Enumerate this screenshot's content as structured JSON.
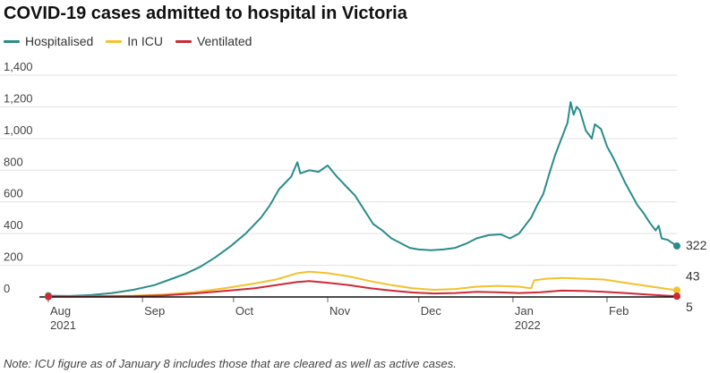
{
  "colors": {
    "hospitalised": "#2a8c8a",
    "icu": "#f2c12e",
    "ventilated": "#cc2a36",
    "grid": "#e2e2e2",
    "axis": "#111111"
  },
  "chart_data": {
    "type": "line",
    "title": "COVID-19 cases admitted to hospital in Victoria",
    "note": "Note: ICU figure as of January 8 includes those that are cleared as well as active cases.",
    "xlabel": "",
    "ylabel": "",
    "ylim": [
      0,
      1400
    ],
    "y_ticks": [
      0,
      200,
      400,
      600,
      800,
      1000,
      1200,
      1400
    ],
    "y_tick_labels": [
      "0",
      "200",
      "400",
      "600",
      "800",
      "1,000",
      "1,200",
      "1,400"
    ],
    "x_ticks": [
      {
        "date": "2021-08-01",
        "label": "Aug",
        "year": "2021"
      },
      {
        "date": "2021-09-01",
        "label": "Sep",
        "year": ""
      },
      {
        "date": "2021-10-01",
        "label": "Oct",
        "year": ""
      },
      {
        "date": "2021-11-01",
        "label": "Nov",
        "year": ""
      },
      {
        "date": "2021-12-01",
        "label": "Dec",
        "year": ""
      },
      {
        "date": "2022-01-01",
        "label": "Jan",
        "year": "2022"
      },
      {
        "date": "2022-02-01",
        "label": "Feb",
        "year": ""
      }
    ],
    "xlim": [
      "2021-08-01",
      "2022-02-24"
    ],
    "grid": true,
    "legend_position": "top-left",
    "series": [
      {
        "name": "Hospitalised",
        "color_key": "hospitalised",
        "end_label": "322",
        "points": [
          [
            "2021-08-01",
            8
          ],
          [
            "2021-08-08",
            6
          ],
          [
            "2021-08-15",
            12
          ],
          [
            "2021-08-22",
            25
          ],
          [
            "2021-08-29",
            45
          ],
          [
            "2021-09-05",
            75
          ],
          [
            "2021-09-10",
            110
          ],
          [
            "2021-09-15",
            145
          ],
          [
            "2021-09-20",
            190
          ],
          [
            "2021-09-25",
            250
          ],
          [
            "2021-09-30",
            320
          ],
          [
            "2021-10-05",
            400
          ],
          [
            "2021-10-10",
            500
          ],
          [
            "2021-10-13",
            580
          ],
          [
            "2021-10-16",
            680
          ],
          [
            "2021-10-18",
            720
          ],
          [
            "2021-10-20",
            760
          ],
          [
            "2021-10-22",
            850
          ],
          [
            "2021-10-23",
            780
          ],
          [
            "2021-10-26",
            800
          ],
          [
            "2021-10-29",
            790
          ],
          [
            "2021-11-01",
            830
          ],
          [
            "2021-11-04",
            760
          ],
          [
            "2021-11-07",
            700
          ],
          [
            "2021-11-10",
            640
          ],
          [
            "2021-11-13",
            550
          ],
          [
            "2021-11-16",
            460
          ],
          [
            "2021-11-19",
            420
          ],
          [
            "2021-11-22",
            370
          ],
          [
            "2021-11-25",
            340
          ],
          [
            "2021-11-28",
            310
          ],
          [
            "2021-12-01",
            300
          ],
          [
            "2021-12-05",
            295
          ],
          [
            "2021-12-09",
            300
          ],
          [
            "2021-12-13",
            310
          ],
          [
            "2021-12-17",
            340
          ],
          [
            "2021-12-20",
            370
          ],
          [
            "2021-12-24",
            390
          ],
          [
            "2021-12-28",
            395
          ],
          [
            "2021-12-31",
            370
          ],
          [
            "2022-01-03",
            400
          ],
          [
            "2022-01-05",
            450
          ],
          [
            "2022-01-07",
            500
          ],
          [
            "2022-01-09",
            580
          ],
          [
            "2022-01-11",
            650
          ],
          [
            "2022-01-13",
            780
          ],
          [
            "2022-01-15",
            900
          ],
          [
            "2022-01-17",
            1000
          ],
          [
            "2022-01-18",
            1050
          ],
          [
            "2022-01-19",
            1100
          ],
          [
            "2022-01-20",
            1230
          ],
          [
            "2022-01-21",
            1150
          ],
          [
            "2022-01-22",
            1200
          ],
          [
            "2022-01-23",
            1180
          ],
          [
            "2022-01-25",
            1050
          ],
          [
            "2022-01-27",
            1000
          ],
          [
            "2022-01-28",
            1090
          ],
          [
            "2022-01-30",
            1060
          ],
          [
            "2022-02-01",
            950
          ],
          [
            "2022-02-03",
            880
          ],
          [
            "2022-02-05",
            800
          ],
          [
            "2022-02-07",
            720
          ],
          [
            "2022-02-09",
            650
          ],
          [
            "2022-02-11",
            580
          ],
          [
            "2022-02-13",
            530
          ],
          [
            "2022-02-15",
            470
          ],
          [
            "2022-02-17",
            420
          ],
          [
            "2022-02-18",
            450
          ],
          [
            "2022-02-19",
            370
          ],
          [
            "2022-02-21",
            360
          ],
          [
            "2022-02-24",
            322
          ]
        ]
      },
      {
        "name": "In ICU",
        "color_key": "icu",
        "end_label": "43",
        "points": [
          [
            "2021-08-01",
            3
          ],
          [
            "2021-08-15",
            4
          ],
          [
            "2021-08-29",
            8
          ],
          [
            "2021-09-08",
            15
          ],
          [
            "2021-09-18",
            30
          ],
          [
            "2021-09-28",
            55
          ],
          [
            "2021-10-08",
            85
          ],
          [
            "2021-10-15",
            110
          ],
          [
            "2021-10-22",
            150
          ],
          [
            "2021-10-26",
            160
          ],
          [
            "2021-11-01",
            150
          ],
          [
            "2021-11-08",
            130
          ],
          [
            "2021-11-15",
            100
          ],
          [
            "2021-11-22",
            75
          ],
          [
            "2021-11-29",
            55
          ],
          [
            "2021-12-06",
            45
          ],
          [
            "2021-12-13",
            50
          ],
          [
            "2021-12-20",
            65
          ],
          [
            "2021-12-27",
            70
          ],
          [
            "2022-01-03",
            65
          ],
          [
            "2022-01-07",
            55
          ],
          [
            "2022-01-08",
            105
          ],
          [
            "2022-01-12",
            115
          ],
          [
            "2022-01-17",
            120
          ],
          [
            "2022-01-24",
            115
          ],
          [
            "2022-01-31",
            110
          ],
          [
            "2022-02-07",
            90
          ],
          [
            "2022-02-14",
            70
          ],
          [
            "2022-02-21",
            50
          ],
          [
            "2022-02-24",
            43
          ]
        ]
      },
      {
        "name": "Ventilated",
        "color_key": "ventilated",
        "end_label": "5",
        "points": [
          [
            "2021-08-01",
            2
          ],
          [
            "2021-08-15",
            3
          ],
          [
            "2021-08-29",
            5
          ],
          [
            "2021-09-08",
            10
          ],
          [
            "2021-09-18",
            22
          ],
          [
            "2021-09-28",
            38
          ],
          [
            "2021-10-08",
            55
          ],
          [
            "2021-10-15",
            75
          ],
          [
            "2021-10-22",
            95
          ],
          [
            "2021-10-26",
            100
          ],
          [
            "2021-11-01",
            90
          ],
          [
            "2021-11-08",
            75
          ],
          [
            "2021-11-15",
            55
          ],
          [
            "2021-11-22",
            40
          ],
          [
            "2021-11-29",
            28
          ],
          [
            "2021-12-06",
            22
          ],
          [
            "2021-12-13",
            25
          ],
          [
            "2021-12-20",
            32
          ],
          [
            "2021-12-27",
            30
          ],
          [
            "2022-01-03",
            25
          ],
          [
            "2022-01-10",
            30
          ],
          [
            "2022-01-17",
            40
          ],
          [
            "2022-01-24",
            38
          ],
          [
            "2022-01-31",
            32
          ],
          [
            "2022-02-07",
            25
          ],
          [
            "2022-02-14",
            15
          ],
          [
            "2022-02-21",
            8
          ],
          [
            "2022-02-24",
            5
          ]
        ]
      }
    ]
  }
}
